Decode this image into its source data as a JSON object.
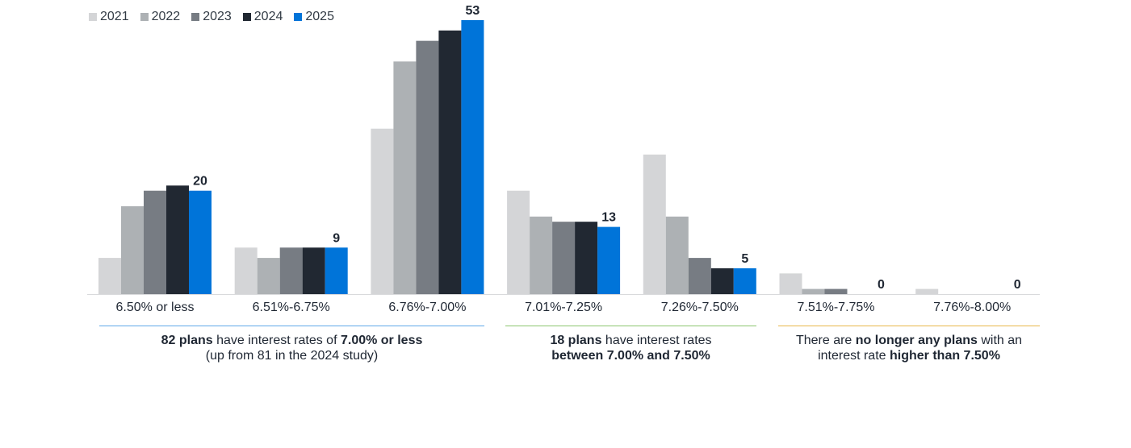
{
  "chart_data": {
    "type": "bar",
    "categories": [
      "6.50% or less",
      "6.51%-6.75%",
      "6.76%-7.00%",
      "7.01%-7.25%",
      "7.26%-7.50%",
      "7.51%-7.75%",
      "7.76%-8.00%"
    ],
    "series": [
      {
        "name": "2021",
        "color": "#d4d5d7",
        "values": [
          7,
          9,
          32,
          20,
          27,
          4,
          1
        ]
      },
      {
        "name": "2022",
        "color": "#adb1b4",
        "values": [
          17,
          7,
          45,
          15,
          15,
          1,
          0
        ]
      },
      {
        "name": "2023",
        "color": "#777c83",
        "values": [
          20,
          9,
          49,
          14,
          7,
          1,
          0
        ]
      },
      {
        "name": "2024",
        "color": "#212832",
        "values": [
          21,
          9,
          51,
          14,
          5,
          0,
          0
        ]
      },
      {
        "name": "2025",
        "color": "#0074d9",
        "values": [
          20,
          9,
          53,
          13,
          5,
          0,
          0
        ]
      }
    ],
    "data_labels": [
      "20",
      "9",
      "53",
      "13",
      "5",
      "0",
      "0"
    ],
    "ylim": [
      0,
      53
    ],
    "grid": false,
    "legend": "top-left"
  },
  "notes": [
    {
      "color": "#5fa8e8",
      "bold1": "82 plans",
      "text1": " have interest rates of ",
      "bold2": "7.00% or less",
      "line2": "(up from 81 in the 2024 study)"
    },
    {
      "color": "#8cc66e",
      "bold1": "18 plans",
      "text1": " have interest rates",
      "bold2": "between 7.00% and 7.50%"
    },
    {
      "color": "#e8b84a",
      "text1": "There are ",
      "bold1": "no longer any plans",
      "text2": " with an",
      "text3": "interest rate ",
      "bold2": "higher than 7.50%"
    }
  ]
}
